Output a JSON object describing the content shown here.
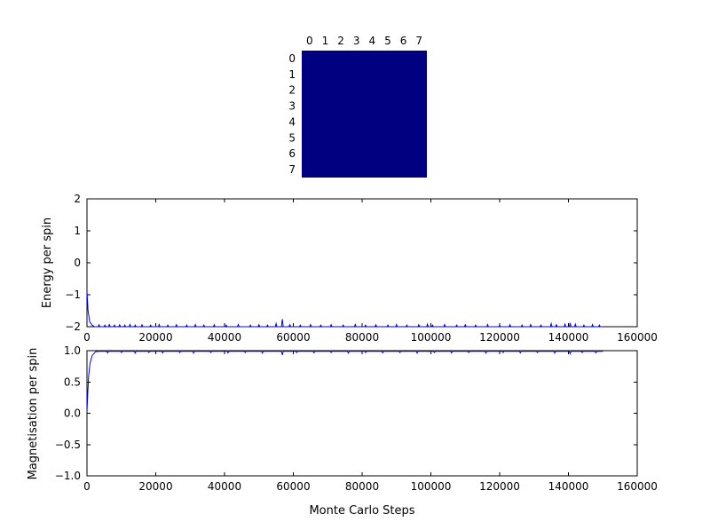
{
  "colors": {
    "background": "#ffffff",
    "axis": "#000000",
    "line": "#0000ff",
    "lattice_fill": "#000080"
  },
  "chart_data": [
    {
      "type": "heatmap",
      "name": "spin-lattice",
      "rows": 8,
      "cols": 8,
      "x_tick_labels": [
        "0",
        "1",
        "2",
        "3",
        "4",
        "5",
        "6",
        "7"
      ],
      "y_tick_labels": [
        "0",
        "1",
        "2",
        "3",
        "4",
        "5",
        "6",
        "7"
      ],
      "values": [
        [
          1,
          1,
          1,
          1,
          1,
          1,
          1,
          1
        ],
        [
          1,
          1,
          1,
          1,
          1,
          1,
          1,
          1
        ],
        [
          1,
          1,
          1,
          1,
          1,
          1,
          1,
          1
        ],
        [
          1,
          1,
          1,
          1,
          1,
          1,
          1,
          1
        ],
        [
          1,
          1,
          1,
          1,
          1,
          1,
          1,
          1
        ],
        [
          1,
          1,
          1,
          1,
          1,
          1,
          1,
          1
        ],
        [
          1,
          1,
          1,
          1,
          1,
          1,
          1,
          1
        ],
        [
          1,
          1,
          1,
          1,
          1,
          1,
          1,
          1
        ]
      ],
      "value_color": "#000080"
    },
    {
      "type": "line",
      "ylabel": "Energy per spin",
      "xlim": [
        0,
        160000
      ],
      "ylim": [
        -2,
        2
      ],
      "xticks": [
        0,
        20000,
        40000,
        60000,
        80000,
        100000,
        120000,
        140000,
        160000
      ],
      "xtick_labels": [
        "0",
        "20000",
        "40000",
        "60000",
        "80000",
        "100000",
        "120000",
        "140000",
        "160000"
      ],
      "yticks": [
        -2,
        -1,
        0,
        1,
        2
      ],
      "ytick_labels": [
        "−2",
        "−1",
        "0",
        "1",
        "2"
      ],
      "grid": false,
      "series": [
        {
          "name": "Energy per spin",
          "color": "#0000ff",
          "start": [
            [
              0,
              -0.875
            ],
            [
              300,
              -1.5
            ],
            [
              800,
              -1.85
            ],
            [
              1500,
              -1.95
            ],
            [
              2200,
              -2.0
            ]
          ],
          "baseline": -2.0,
          "spike_half_width": 250,
          "spikes": [
            [
              3500,
              -1.94
            ],
            [
              5200,
              -1.95
            ],
            [
              6500,
              -1.93
            ],
            [
              8000,
              -1.95
            ],
            [
              9500,
              -1.94
            ],
            [
              11000,
              -1.95
            ],
            [
              12500,
              -1.93
            ],
            [
              14000,
              -1.95
            ],
            [
              16000,
              -1.94
            ],
            [
              18500,
              -1.95
            ],
            [
              21000,
              -1.93
            ],
            [
              23500,
              -1.95
            ],
            [
              26000,
              -1.94
            ],
            [
              29000,
              -1.95
            ],
            [
              31500,
              -1.93
            ],
            [
              34000,
              -1.95
            ],
            [
              37000,
              -1.94
            ],
            [
              40500,
              -1.95
            ],
            [
              44000,
              -1.93
            ],
            [
              47500,
              -1.95
            ],
            [
              50000,
              -1.94
            ],
            [
              52500,
              -1.95
            ],
            [
              55000,
              -1.9
            ],
            [
              56800,
              -1.76
            ],
            [
              59000,
              -1.94
            ],
            [
              62000,
              -1.95
            ],
            [
              65000,
              -1.93
            ],
            [
              68000,
              -1.95
            ],
            [
              71000,
              -1.94
            ],
            [
              74500,
              -1.95
            ],
            [
              78000,
              -1.93
            ],
            [
              81000,
              -1.95
            ],
            [
              84000,
              -1.94
            ],
            [
              87500,
              -1.95
            ],
            [
              90000,
              -1.93
            ],
            [
              93000,
              -1.95
            ],
            [
              96500,
              -1.94
            ],
            [
              99000,
              -1.92
            ],
            [
              100500,
              -1.95
            ],
            [
              104000,
              -1.93
            ],
            [
              107500,
              -1.95
            ],
            [
              110000,
              -1.94
            ],
            [
              113000,
              -1.95
            ],
            [
              116500,
              -1.93
            ],
            [
              120000,
              -1.95
            ],
            [
              123000,
              -1.94
            ],
            [
              126500,
              -1.95
            ],
            [
              129000,
              -1.93
            ],
            [
              132000,
              -1.95
            ],
            [
              135000,
              -1.9
            ],
            [
              136500,
              -1.94
            ],
            [
              139000,
              -1.92
            ],
            [
              140500,
              -1.88
            ],
            [
              142000,
              -1.92
            ],
            [
              144500,
              -1.95
            ],
            [
              147000,
              -1.93
            ],
            [
              149000,
              -1.95
            ]
          ],
          "end_x": 150000
        }
      ]
    },
    {
      "type": "line",
      "ylabel": "Magnetisation per spin",
      "xlabel": "Monte Carlo Steps",
      "xlim": [
        0,
        160000
      ],
      "ylim": [
        -1,
        1
      ],
      "xticks": [
        0,
        20000,
        40000,
        60000,
        80000,
        100000,
        120000,
        140000,
        160000
      ],
      "xtick_labels": [
        "0",
        "20000",
        "40000",
        "60000",
        "80000",
        "100000",
        "120000",
        "140000",
        "160000"
      ],
      "yticks": [
        -1.0,
        -0.5,
        0.0,
        0.5,
        1.0
      ],
      "ytick_labels": [
        "−1.0",
        "−0.5",
        "0.0",
        "0.5",
        "1.0"
      ],
      "grid": false,
      "series": [
        {
          "name": "Magnetisation per spin",
          "color": "#0000ff",
          "start": [
            [
              0,
              0.02
            ],
            [
              250,
              0.35
            ],
            [
              500,
              0.6
            ],
            [
              900,
              0.8
            ],
            [
              1500,
              0.92
            ],
            [
              2500,
              0.985
            ],
            [
              3500,
              0.99
            ]
          ],
          "baseline": 0.99,
          "spike_half_width": 250,
          "spikes": [
            [
              6000,
              0.965
            ],
            [
              10000,
              0.97
            ],
            [
              14000,
              0.96
            ],
            [
              18000,
              0.97
            ],
            [
              22000,
              0.965
            ],
            [
              27000,
              0.97
            ],
            [
              31000,
              0.96
            ],
            [
              36000,
              0.97
            ],
            [
              41000,
              0.965
            ],
            [
              46000,
              0.97
            ],
            [
              51000,
              0.96
            ],
            [
              56800,
              0.93
            ],
            [
              61000,
              0.97
            ],
            [
              66000,
              0.965
            ],
            [
              71000,
              0.97
            ],
            [
              76000,
              0.96
            ],
            [
              81000,
              0.97
            ],
            [
              86000,
              0.965
            ],
            [
              91000,
              0.97
            ],
            [
              96000,
              0.96
            ],
            [
              101000,
              0.97
            ],
            [
              106000,
              0.965
            ],
            [
              111000,
              0.97
            ],
            [
              116000,
              0.96
            ],
            [
              121000,
              0.97
            ],
            [
              126000,
              0.965
            ],
            [
              131000,
              0.97
            ],
            [
              136000,
              0.96
            ],
            [
              140500,
              0.95
            ],
            [
              144000,
              0.97
            ],
            [
              148000,
              0.965
            ]
          ],
          "end_x": 150000
        }
      ]
    }
  ]
}
